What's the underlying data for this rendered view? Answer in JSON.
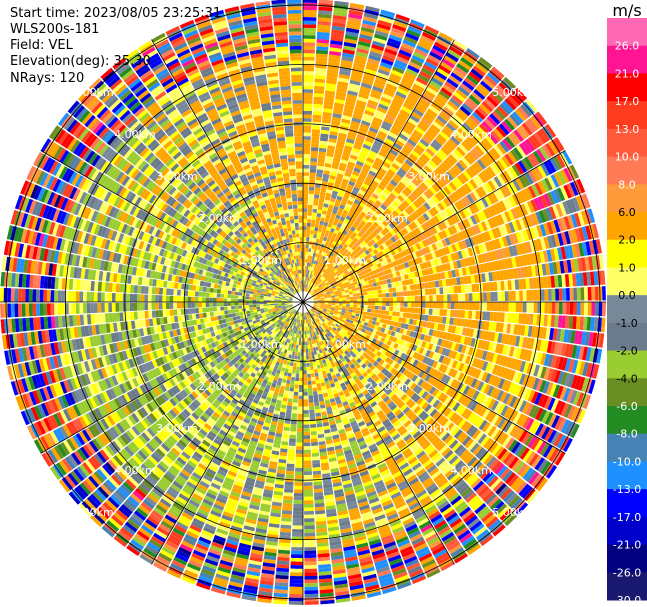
{
  "info": {
    "start_time": "Start time: 2023/08/05 23:25:31",
    "site": "WLS200s-181",
    "field": "Field: VEL",
    "elevation": "Elevation(deg): 35.30",
    "nrays": "NRays: 120"
  },
  "chart_data": {
    "type": "heatmap",
    "projection": "polar-ppi",
    "title": "",
    "range_rings_km": [
      1.0,
      2.0,
      3.0,
      4.0,
      5.0
    ],
    "ring_labels": [
      "1.00km",
      "2.00km",
      "3.00km",
      "4.00km",
      "5.00km"
    ],
    "max_range_km": 5.1,
    "n_rays": 120,
    "azimuth_lines_deg": [
      0,
      30,
      60,
      90,
      120,
      150,
      180,
      210,
      240,
      270,
      300,
      330
    ],
    "colorbar": {
      "unit": "m/s",
      "tick_labels": [
        "26.0",
        "21.0",
        "17.0",
        "13.0",
        "10.0",
        "8.0",
        "6.0",
        "2.0",
        "1.0",
        "0.0",
        "-1.0",
        "-2.0",
        "-4.0",
        "-6.0",
        "-8.0",
        "-10.0",
        "-13.0",
        "-17.0",
        "-21.0",
        "-26.0",
        "-30.0"
      ],
      "bands": [
        {
          "hi": 30,
          "lo": 26,
          "color": "#ff69b4"
        },
        {
          "hi": 26,
          "lo": 21,
          "color": "#ff1493"
        },
        {
          "hi": 21,
          "lo": 17,
          "color": "#ff0000"
        },
        {
          "hi": 17,
          "lo": 13,
          "color": "#ff3c1e"
        },
        {
          "hi": 13,
          "lo": 10,
          "color": "#ff5a3c"
        },
        {
          "hi": 10,
          "lo": 8,
          "color": "#ff7a55"
        },
        {
          "hi": 8,
          "lo": 6,
          "color": "#ff9a3a"
        },
        {
          "hi": 6,
          "lo": 2,
          "color": "#ffa500"
        },
        {
          "hi": 2,
          "lo": 1,
          "color": "#ffff00"
        },
        {
          "hi": 1,
          "lo": 0,
          "color": "#ffff66"
        },
        {
          "hi": 0,
          "lo": -1,
          "color": "#778899"
        },
        {
          "hi": -1,
          "lo": -2,
          "color": "#6b7b8b"
        },
        {
          "hi": -2,
          "lo": -4,
          "color": "#9acd32"
        },
        {
          "hi": -4,
          "lo": -6,
          "color": "#6b8e23"
        },
        {
          "hi": -6,
          "lo": -8,
          "color": "#228b22"
        },
        {
          "hi": -8,
          "lo": -10,
          "color": "#4682b4"
        },
        {
          "hi": -10,
          "lo": -13,
          "color": "#1e90ff"
        },
        {
          "hi": -13,
          "lo": -17,
          "color": "#0000ff"
        },
        {
          "hi": -17,
          "lo": -21,
          "color": "#0000cd"
        },
        {
          "hi": -21,
          "lo": -26,
          "color": "#000080"
        },
        {
          "hi": -26,
          "lo": -30,
          "color": "#191970"
        }
      ]
    }
  }
}
